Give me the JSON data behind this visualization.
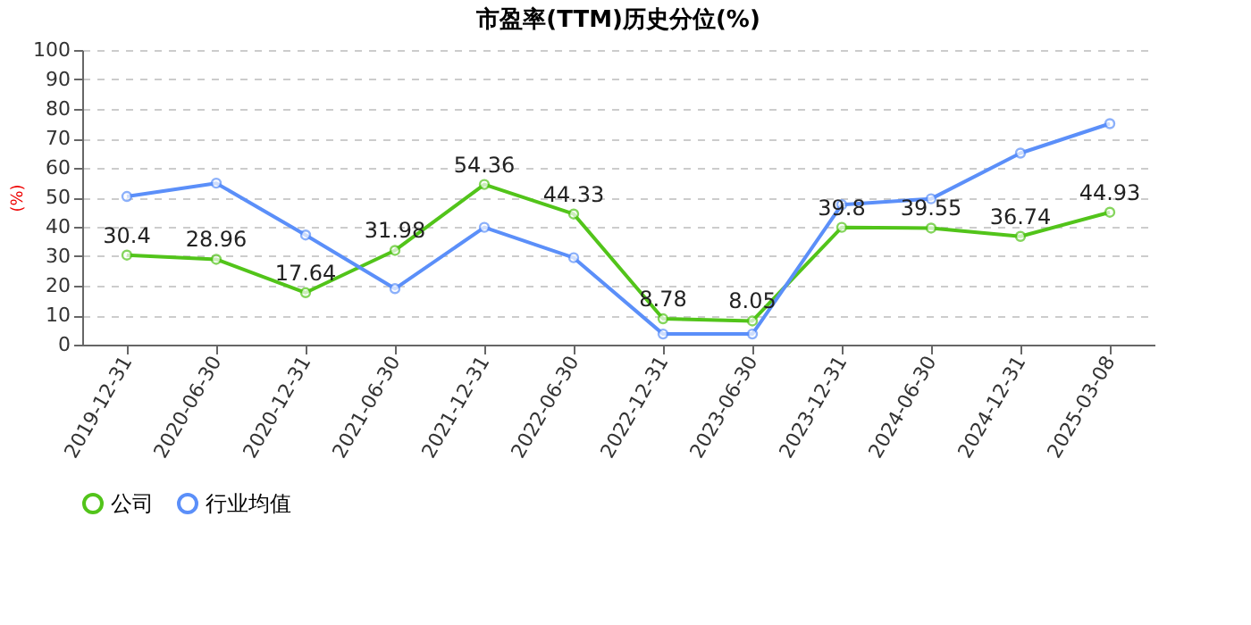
{
  "chart_data": {
    "type": "line",
    "title": "市盈率(TTM)历史分位(%)",
    "ylabel": "(%)",
    "categories": [
      "2019-12-31",
      "2020-06-30",
      "2020-12-31",
      "2021-06-30",
      "2021-12-31",
      "2022-06-30",
      "2022-12-31",
      "2023-06-30",
      "2023-12-31",
      "2024-06-30",
      "2024-12-31",
      "2025-03-08"
    ],
    "series": [
      {
        "name": "公司",
        "color": "#52c41a",
        "values": [
          30.4,
          28.96,
          17.64,
          31.98,
          54.36,
          44.33,
          8.78,
          8.05,
          39.8,
          39.55,
          36.74,
          44.93
        ],
        "value_labels": [
          "30.4",
          "28.96",
          "17.64",
          "31.98",
          "54.36",
          "44.33",
          "8.78",
          "8.05",
          "39.8",
          "39.55",
          "36.74",
          "44.93"
        ]
      },
      {
        "name": "行业均值",
        "color": "#5b8ff9",
        "values": [
          50.3,
          54.8,
          37.2,
          19,
          39.8,
          29.5,
          3.6,
          3.6,
          47.5,
          49.5,
          65,
          75
        ]
      }
    ],
    "ylim": [
      0,
      100
    ],
    "yticks": [
      0,
      10,
      20,
      30,
      40,
      50,
      60,
      70,
      80,
      90,
      100
    ],
    "grid": "y",
    "legend": "bottom",
    "marker": "circle",
    "line_style": "solid"
  }
}
